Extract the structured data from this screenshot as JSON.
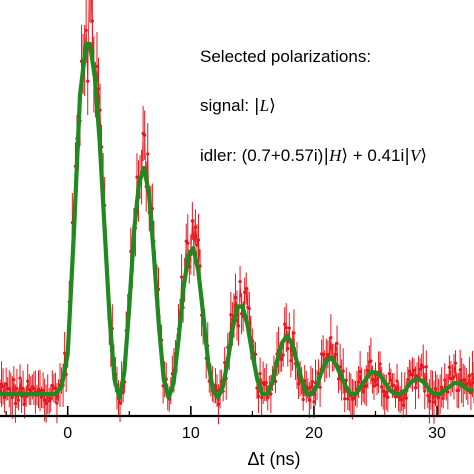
{
  "annotations": {
    "heading": "Selected polarizations:",
    "signal_prefix": "signal: ",
    "signal_state": "L",
    "idler_prefix": "idler: (0.7+0.57i)",
    "idler_state_h": "H",
    "idler_mid": " + 0.41i",
    "idler_state_v": "V"
  },
  "chart_data": {
    "type": "line",
    "xlabel": "Δt (ns)",
    "ylabel": "",
    "xlim": [
      -5.5,
      33
    ],
    "ylim": [
      -0.02,
      1.12
    ],
    "x_ticks": [
      0,
      10,
      20,
      30
    ],
    "colors": {
      "data": "#e8161c",
      "fit": "#1f8a1f"
    },
    "series": [
      {
        "kind": "fit",
        "x": [
          -5.5,
          -4,
          -3,
          -2,
          -1,
          -0.5,
          0,
          0.5,
          1,
          1.5,
          1.8,
          2.2,
          2.6,
          3,
          3.4,
          3.8,
          4.2,
          4.6,
          5,
          5.4,
          5.8,
          6.2,
          6.6,
          7,
          7.4,
          7.8,
          8.2,
          8.6,
          9,
          9.4,
          9.8,
          10.2,
          10.6,
          11,
          11.4,
          11.8,
          12.2,
          12.6,
          13,
          13.4,
          13.8,
          14.2,
          14.6,
          15,
          15.4,
          15.8,
          16.2,
          16.6,
          17,
          17.4,
          17.8,
          18.2,
          18.6,
          19,
          19.4,
          19.8,
          20.2,
          20.6,
          21,
          21.4,
          21.8,
          22.2,
          22.6,
          23,
          23.4,
          23.8,
          24.2,
          24.6,
          25,
          25.4,
          25.8,
          26.2,
          26.6,
          27,
          27.4,
          27.8,
          28.2,
          28.6,
          29,
          29.4,
          29.8,
          30.2,
          30.6,
          31,
          31.4,
          31.8,
          32.2,
          32.6,
          33
        ],
        "y": [
          0.04,
          0.04,
          0.04,
          0.04,
          0.04,
          0.06,
          0.15,
          0.48,
          0.86,
          1.0,
          1.0,
          0.91,
          0.73,
          0.49,
          0.25,
          0.08,
          0.03,
          0.1,
          0.28,
          0.49,
          0.62,
          0.66,
          0.59,
          0.42,
          0.23,
          0.08,
          0.03,
          0.07,
          0.19,
          0.33,
          0.42,
          0.44,
          0.38,
          0.26,
          0.13,
          0.05,
          0.03,
          0.06,
          0.13,
          0.22,
          0.28,
          0.28,
          0.23,
          0.15,
          0.08,
          0.04,
          0.04,
          0.07,
          0.13,
          0.18,
          0.2,
          0.18,
          0.13,
          0.08,
          0.04,
          0.04,
          0.06,
          0.1,
          0.13,
          0.14,
          0.12,
          0.09,
          0.06,
          0.04,
          0.04,
          0.06,
          0.08,
          0.1,
          0.1,
          0.09,
          0.07,
          0.05,
          0.04,
          0.04,
          0.05,
          0.07,
          0.08,
          0.08,
          0.07,
          0.05,
          0.04,
          0.04,
          0.05,
          0.06,
          0.07,
          0.07,
          0.06,
          0.05,
          0.05
        ]
      }
    ],
    "measured_points": {
      "dx": 0.125,
      "x_start": -5.5,
      "x_end": 33,
      "error_bar": 0.04,
      "note_source": "noisy measured coincidences following the fit envelope"
    }
  }
}
